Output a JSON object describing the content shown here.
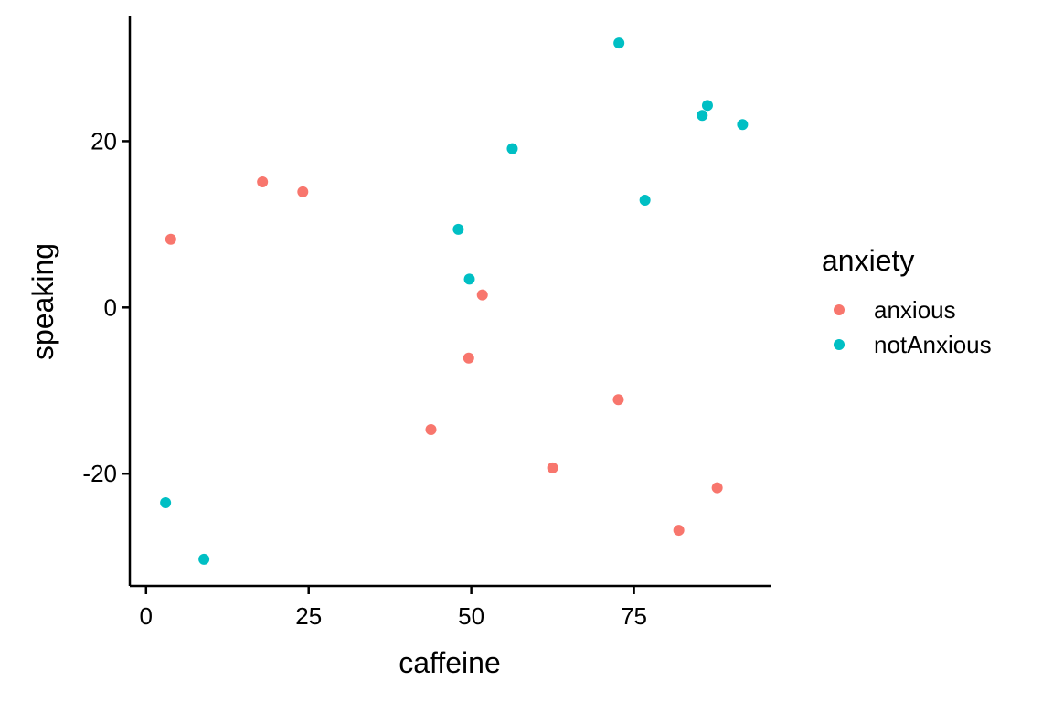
{
  "chart_data": {
    "type": "scatter",
    "title": "",
    "xlabel": "caffeine",
    "ylabel": "speaking",
    "xlim": [
      -2.5,
      96
    ],
    "ylim": [
      -33.5,
      35
    ],
    "x_ticks": [
      0,
      25,
      50,
      75
    ],
    "x_tick_labels": [
      "0",
      "25",
      "50",
      "75"
    ],
    "y_ticks": [
      -20,
      0,
      20
    ],
    "y_tick_labels": [
      "-20",
      "0",
      "20"
    ],
    "grid": false,
    "legend": {
      "title": "anxiety",
      "placement": "right"
    },
    "series": [
      {
        "name": "anxious",
        "color": "#F8766D",
        "points": [
          {
            "x": 3.8,
            "y": 8.2
          },
          {
            "x": 17.9,
            "y": 15.1
          },
          {
            "x": 24.1,
            "y": 13.9
          },
          {
            "x": 43.8,
            "y": -14.7
          },
          {
            "x": 49.6,
            "y": -6.1
          },
          {
            "x": 51.7,
            "y": 1.5
          },
          {
            "x": 62.5,
            "y": -19.3
          },
          {
            "x": 72.6,
            "y": -11.1
          },
          {
            "x": 81.9,
            "y": -26.8
          },
          {
            "x": 87.8,
            "y": -21.7
          }
        ]
      },
      {
        "name": "notAnxious",
        "color": "#00BFC4",
        "points": [
          {
            "x": 3.0,
            "y": -23.5
          },
          {
            "x": 8.9,
            "y": -30.3
          },
          {
            "x": 48.0,
            "y": 9.4
          },
          {
            "x": 49.7,
            "y": 3.4
          },
          {
            "x": 56.3,
            "y": 19.1
          },
          {
            "x": 72.7,
            "y": 31.8
          },
          {
            "x": 76.7,
            "y": 12.9
          },
          {
            "x": 85.5,
            "y": 23.1
          },
          {
            "x": 86.3,
            "y": 24.3
          },
          {
            "x": 91.7,
            "y": 22.0
          }
        ]
      }
    ]
  }
}
